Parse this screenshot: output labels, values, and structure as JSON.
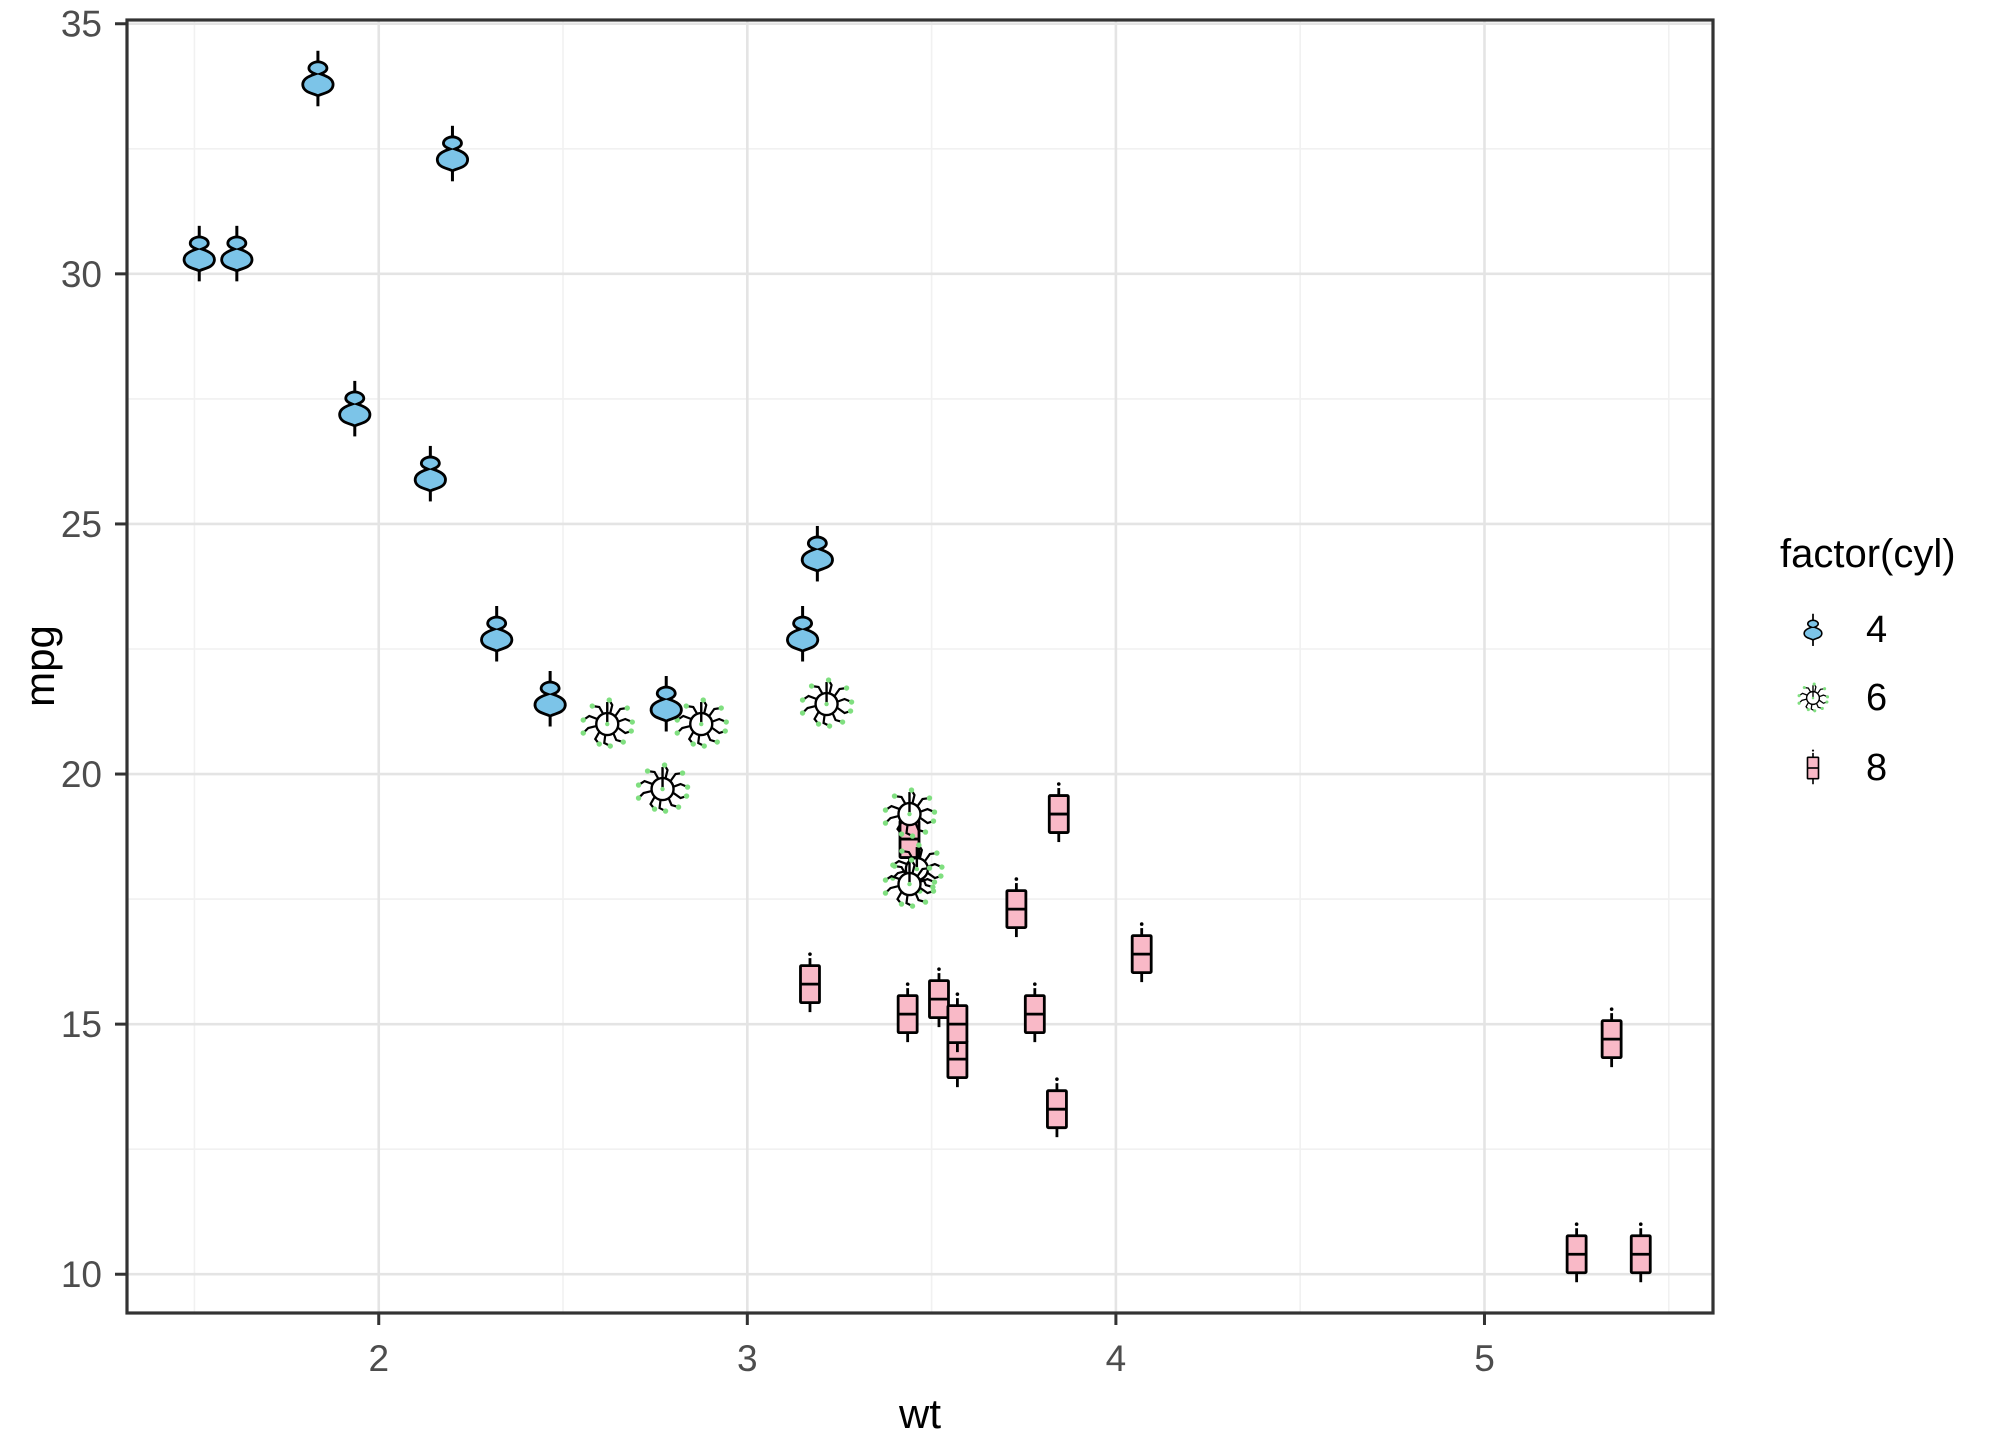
{
  "chart_data": {
    "type": "scatter",
    "title": "",
    "xlabel": "wt",
    "ylabel": "mpg",
    "axes": {
      "xlim": [
        1.317,
        5.62
      ],
      "ylim": [
        9.225,
        35.075
      ],
      "x_major": [
        2,
        3,
        4,
        5
      ],
      "x_minor": [
        1.5,
        2.5,
        3.5,
        4.5,
        5.5
      ],
      "y_major": [
        10,
        15,
        20,
        25,
        30,
        35
      ],
      "y_minor": [
        12.5,
        17.5,
        22.5,
        27.5,
        32.5
      ],
      "grid": true
    },
    "legend": {
      "title": "factor(cyl)",
      "position": "right",
      "entries": [
        {
          "label": "4",
          "glyph": "violin"
        },
        {
          "label": "6",
          "glyph": "hedgehog"
        },
        {
          "label": "8",
          "glyph": "boxplot"
        }
      ]
    },
    "glyph_styles": {
      "violin": {
        "fill": "#7CC4E8",
        "stroke": "#000000"
      },
      "hedgehog": {
        "fill": "#FFFFFF",
        "stroke": "#000000",
        "tip": "#80DF80"
      },
      "boxplot": {
        "fill": "#F9B9C7",
        "stroke": "#000000"
      }
    },
    "points": [
      {
        "wt": 2.62,
        "mpg": 21.0,
        "cyl": "6"
      },
      {
        "wt": 2.875,
        "mpg": 21.0,
        "cyl": "6"
      },
      {
        "wt": 2.32,
        "mpg": 22.8,
        "cyl": "4"
      },
      {
        "wt": 3.215,
        "mpg": 21.4,
        "cyl": "6"
      },
      {
        "wt": 3.44,
        "mpg": 18.7,
        "cyl": "8"
      },
      {
        "wt": 3.46,
        "mpg": 18.1,
        "cyl": "6"
      },
      {
        "wt": 3.57,
        "mpg": 14.3,
        "cyl": "8"
      },
      {
        "wt": 3.19,
        "mpg": 24.4,
        "cyl": "4"
      },
      {
        "wt": 3.15,
        "mpg": 22.8,
        "cyl": "4"
      },
      {
        "wt": 3.44,
        "mpg": 19.2,
        "cyl": "6"
      },
      {
        "wt": 3.44,
        "mpg": 17.8,
        "cyl": "6"
      },
      {
        "wt": 4.07,
        "mpg": 16.4,
        "cyl": "8"
      },
      {
        "wt": 3.73,
        "mpg": 17.3,
        "cyl": "8"
      },
      {
        "wt": 3.78,
        "mpg": 15.2,
        "cyl": "8"
      },
      {
        "wt": 5.25,
        "mpg": 10.4,
        "cyl": "8"
      },
      {
        "wt": 5.424,
        "mpg": 10.4,
        "cyl": "8"
      },
      {
        "wt": 5.345,
        "mpg": 14.7,
        "cyl": "8"
      },
      {
        "wt": 2.2,
        "mpg": 32.4,
        "cyl": "4"
      },
      {
        "wt": 1.615,
        "mpg": 30.4,
        "cyl": "4"
      },
      {
        "wt": 1.835,
        "mpg": 33.9,
        "cyl": "4"
      },
      {
        "wt": 2.465,
        "mpg": 21.5,
        "cyl": "4"
      },
      {
        "wt": 3.52,
        "mpg": 15.5,
        "cyl": "8"
      },
      {
        "wt": 3.435,
        "mpg": 15.2,
        "cyl": "8"
      },
      {
        "wt": 3.84,
        "mpg": 13.3,
        "cyl": "8"
      },
      {
        "wt": 3.845,
        "mpg": 19.2,
        "cyl": "8"
      },
      {
        "wt": 1.935,
        "mpg": 27.3,
        "cyl": "4"
      },
      {
        "wt": 2.14,
        "mpg": 26.0,
        "cyl": "4"
      },
      {
        "wt": 1.513,
        "mpg": 30.4,
        "cyl": "4"
      },
      {
        "wt": 3.17,
        "mpg": 15.8,
        "cyl": "8"
      },
      {
        "wt": 2.77,
        "mpg": 19.7,
        "cyl": "6"
      },
      {
        "wt": 3.57,
        "mpg": 15.0,
        "cyl": "8"
      },
      {
        "wt": 2.78,
        "mpg": 21.4,
        "cyl": "4"
      }
    ],
    "theme": {
      "panel_background": "#FFFFFF",
      "grid_major": "#E4E4E4",
      "grid_minor": "#F1F1F1",
      "panel_border": "#333333",
      "tick_color": "#333333",
      "tick_label_color": "#4D4D4D",
      "title_color": "#000000"
    }
  }
}
